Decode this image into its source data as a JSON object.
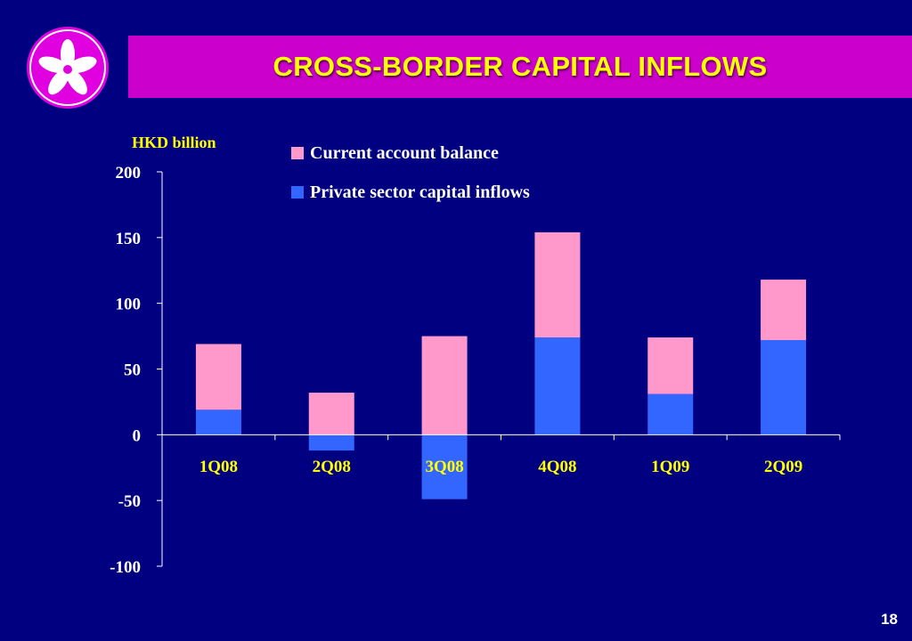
{
  "slide": {
    "title": "CROSS-BORDER CAPITAL INFLOWS",
    "page_number": "18",
    "logo_icon": "bauhinia-flower-icon"
  },
  "colors": {
    "background": "#000080",
    "title_band": "#cc00cc",
    "title_text": "#ffff00",
    "current_account": "#ff99cc",
    "private_capital": "#3366ff",
    "axis": "#ffffff",
    "x_tick_text": "#ffff00"
  },
  "chart_data": {
    "type": "bar",
    "stacked": true,
    "unit_label": "HKD billion",
    "categories": [
      "1Q08",
      "2Q08",
      "3Q08",
      "4Q08",
      "1Q09",
      "2Q09"
    ],
    "series": [
      {
        "name": "Current account balance",
        "values": [
          50,
          32,
          75,
          80,
          43,
          46
        ]
      },
      {
        "name": "Private sector capital inflows",
        "values": [
          19,
          -12,
          -49,
          74,
          31,
          72
        ]
      }
    ],
    "ylim": [
      -100,
      200
    ],
    "yticks": [
      200,
      150,
      100,
      50,
      0,
      -50,
      -100
    ],
    "legend": "top-center",
    "grid": false
  }
}
